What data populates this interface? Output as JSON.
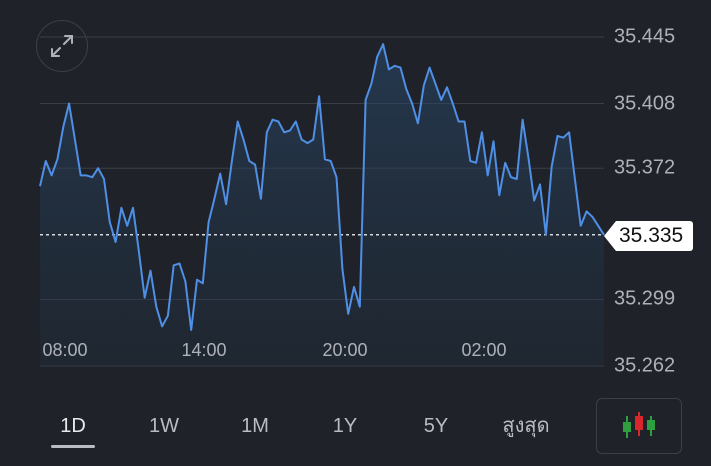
{
  "chart_data": {
    "type": "line",
    "yticks": [
      "35.445",
      "35.408",
      "35.372",
      "35.299",
      "35.262"
    ],
    "ylim": [
      35.262,
      35.445
    ],
    "xticks": [
      "08:00",
      "14:00",
      "20:00",
      "02:00"
    ],
    "current_price": "35.335",
    "current_value": 35.335,
    "grid": true,
    "series": [
      {
        "values": [
          35.362,
          35.376,
          35.368,
          35.377,
          35.395,
          35.408,
          35.388,
          35.368,
          35.368,
          35.367,
          35.372,
          35.366,
          35.342,
          35.331,
          35.35,
          35.34,
          35.35,
          35.326,
          35.3,
          35.315,
          35.295,
          35.284,
          35.29,
          35.318,
          35.319,
          35.309,
          35.282,
          35.31,
          35.308,
          35.342,
          35.355,
          35.369,
          35.352,
          35.376,
          35.398,
          35.388,
          35.376,
          35.374,
          35.355,
          35.392,
          35.399,
          35.398,
          35.392,
          35.393,
          35.398,
          35.388,
          35.386,
          35.388,
          35.412,
          35.377,
          35.376,
          35.367,
          35.316,
          35.291,
          35.306,
          35.295,
          35.41,
          35.419,
          35.434,
          35.441,
          35.427,
          35.429,
          35.428,
          35.416,
          35.408,
          35.397,
          35.418,
          35.428,
          35.419,
          35.41,
          35.417,
          35.408,
          35.398,
          35.398,
          35.376,
          35.375,
          35.392,
          35.368,
          35.387,
          35.357,
          35.375,
          35.367,
          35.366,
          35.399,
          35.378,
          35.354,
          35.363,
          35.335,
          35.373,
          35.39,
          35.389,
          35.392,
          35.366,
          35.34,
          35.348,
          35.345,
          35.34,
          35.335
        ]
      }
    ]
  },
  "ui": {
    "expand_icon": "expand-icon",
    "candlestick_icon": "candlestick-icon",
    "colors": {
      "background": "#1f2329",
      "line": "#4f8fe6",
      "grid": "#3a3f47",
      "candle_green": "#2e9e3f",
      "candle_red": "#d8262d"
    }
  },
  "range_tabs": [
    {
      "label": "1D",
      "active": true
    },
    {
      "label": "1W",
      "active": false
    },
    {
      "label": "1M",
      "active": false
    },
    {
      "label": "1Y",
      "active": false
    },
    {
      "label": "5Y",
      "active": false
    },
    {
      "label": "สูงสุด",
      "active": false
    }
  ]
}
